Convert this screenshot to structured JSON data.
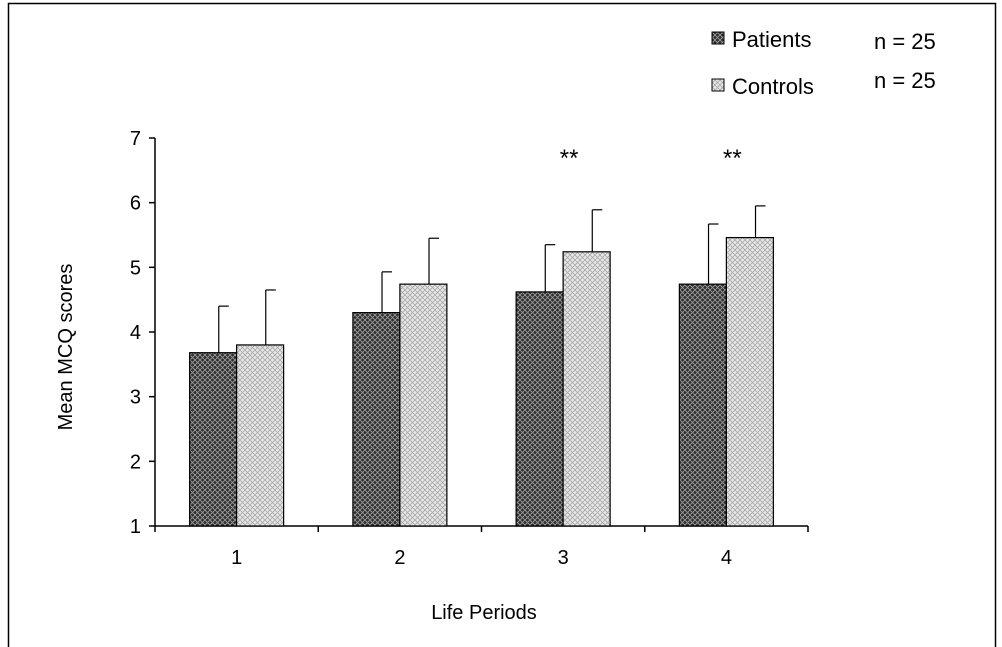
{
  "chart_data": {
    "type": "bar",
    "categories": [
      "1",
      "2",
      "3",
      "4"
    ],
    "series": [
      {
        "name": "Patients",
        "values": [
          3.68,
          4.3,
          4.62,
          4.74
        ],
        "errors": [
          0.72,
          0.63,
          0.73,
          0.93
        ],
        "n": "n = 25",
        "color": "#3a3a3a"
      },
      {
        "name": "Controls",
        "values": [
          3.8,
          4.74,
          5.24,
          5.46
        ],
        "errors": [
          0.85,
          0.71,
          0.65,
          0.49
        ],
        "n": "n = 25",
        "color": "#d8d8d8"
      }
    ],
    "significance": [
      "",
      "",
      "**",
      "**"
    ],
    "xlabel": "Life Periods",
    "ylabel": "Mean MCQ scores",
    "ylim": [
      1,
      7
    ],
    "yticks": [
      "1",
      "2",
      "3",
      "4",
      "5",
      "6",
      "7"
    ],
    "grid": false,
    "legend_position": "top-right"
  }
}
